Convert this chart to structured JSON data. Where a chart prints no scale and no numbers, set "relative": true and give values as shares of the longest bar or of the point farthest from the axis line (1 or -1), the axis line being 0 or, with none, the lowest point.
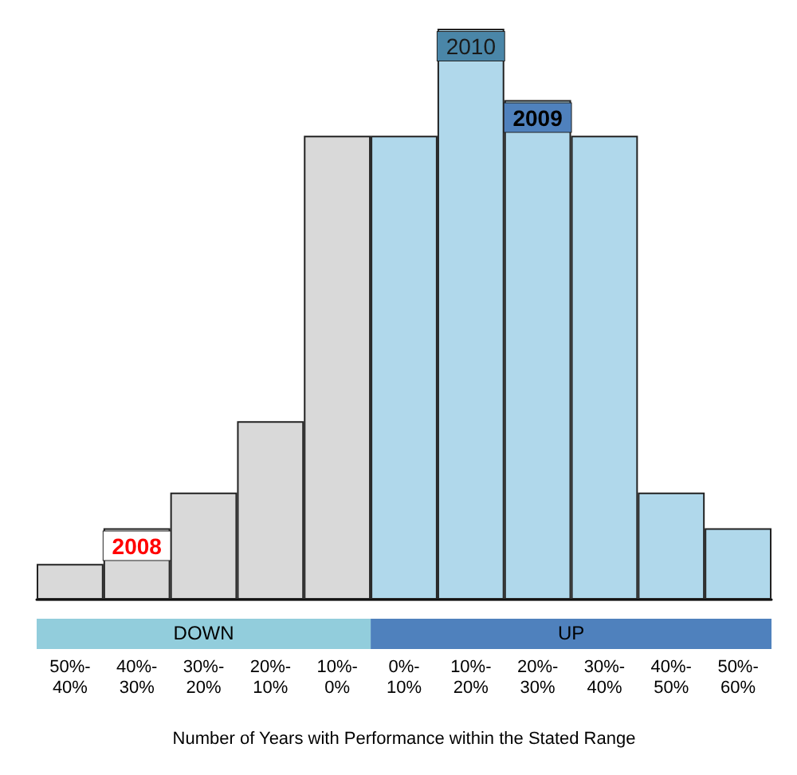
{
  "chart_data": {
    "type": "bar",
    "relative": true,
    "xlabel": "Number of Years with Performance within the Stated Range",
    "categories": [
      "50%-40%",
      "40%-30%",
      "30%-20%",
      "20%-10%",
      "10%-0%",
      "0%-10%",
      "10%-20%",
      "20%-30%",
      "30%-40%",
      "40%-50%",
      "50%-60%"
    ],
    "values": [
      0.0625,
      0.125,
      0.1875,
      0.3125,
      0.8125,
      0.8125,
      1,
      0.875,
      0.8125,
      0.1875,
      0.125
    ],
    "colors": [
      "#d9d9d9",
      "#d9d9d9",
      "#d9d9d9",
      "#d9d9d9",
      "#d9d9d9",
      "#b0d8eb",
      "#b0d8eb",
      "#b0d8eb",
      "#b0d8eb",
      "#b0d8eb",
      "#b0d8eb"
    ],
    "annotations": [
      {
        "text": "2008",
        "x": "40%-30%",
        "y": 0.125
      },
      {
        "text": "2009",
        "x": "20%-30%",
        "y": 0.875
      },
      {
        "text": "2010",
        "x": "10%-20%",
        "y": 1
      },
      "DOWN",
      "UP"
    ],
    "grid": false
  }
}
